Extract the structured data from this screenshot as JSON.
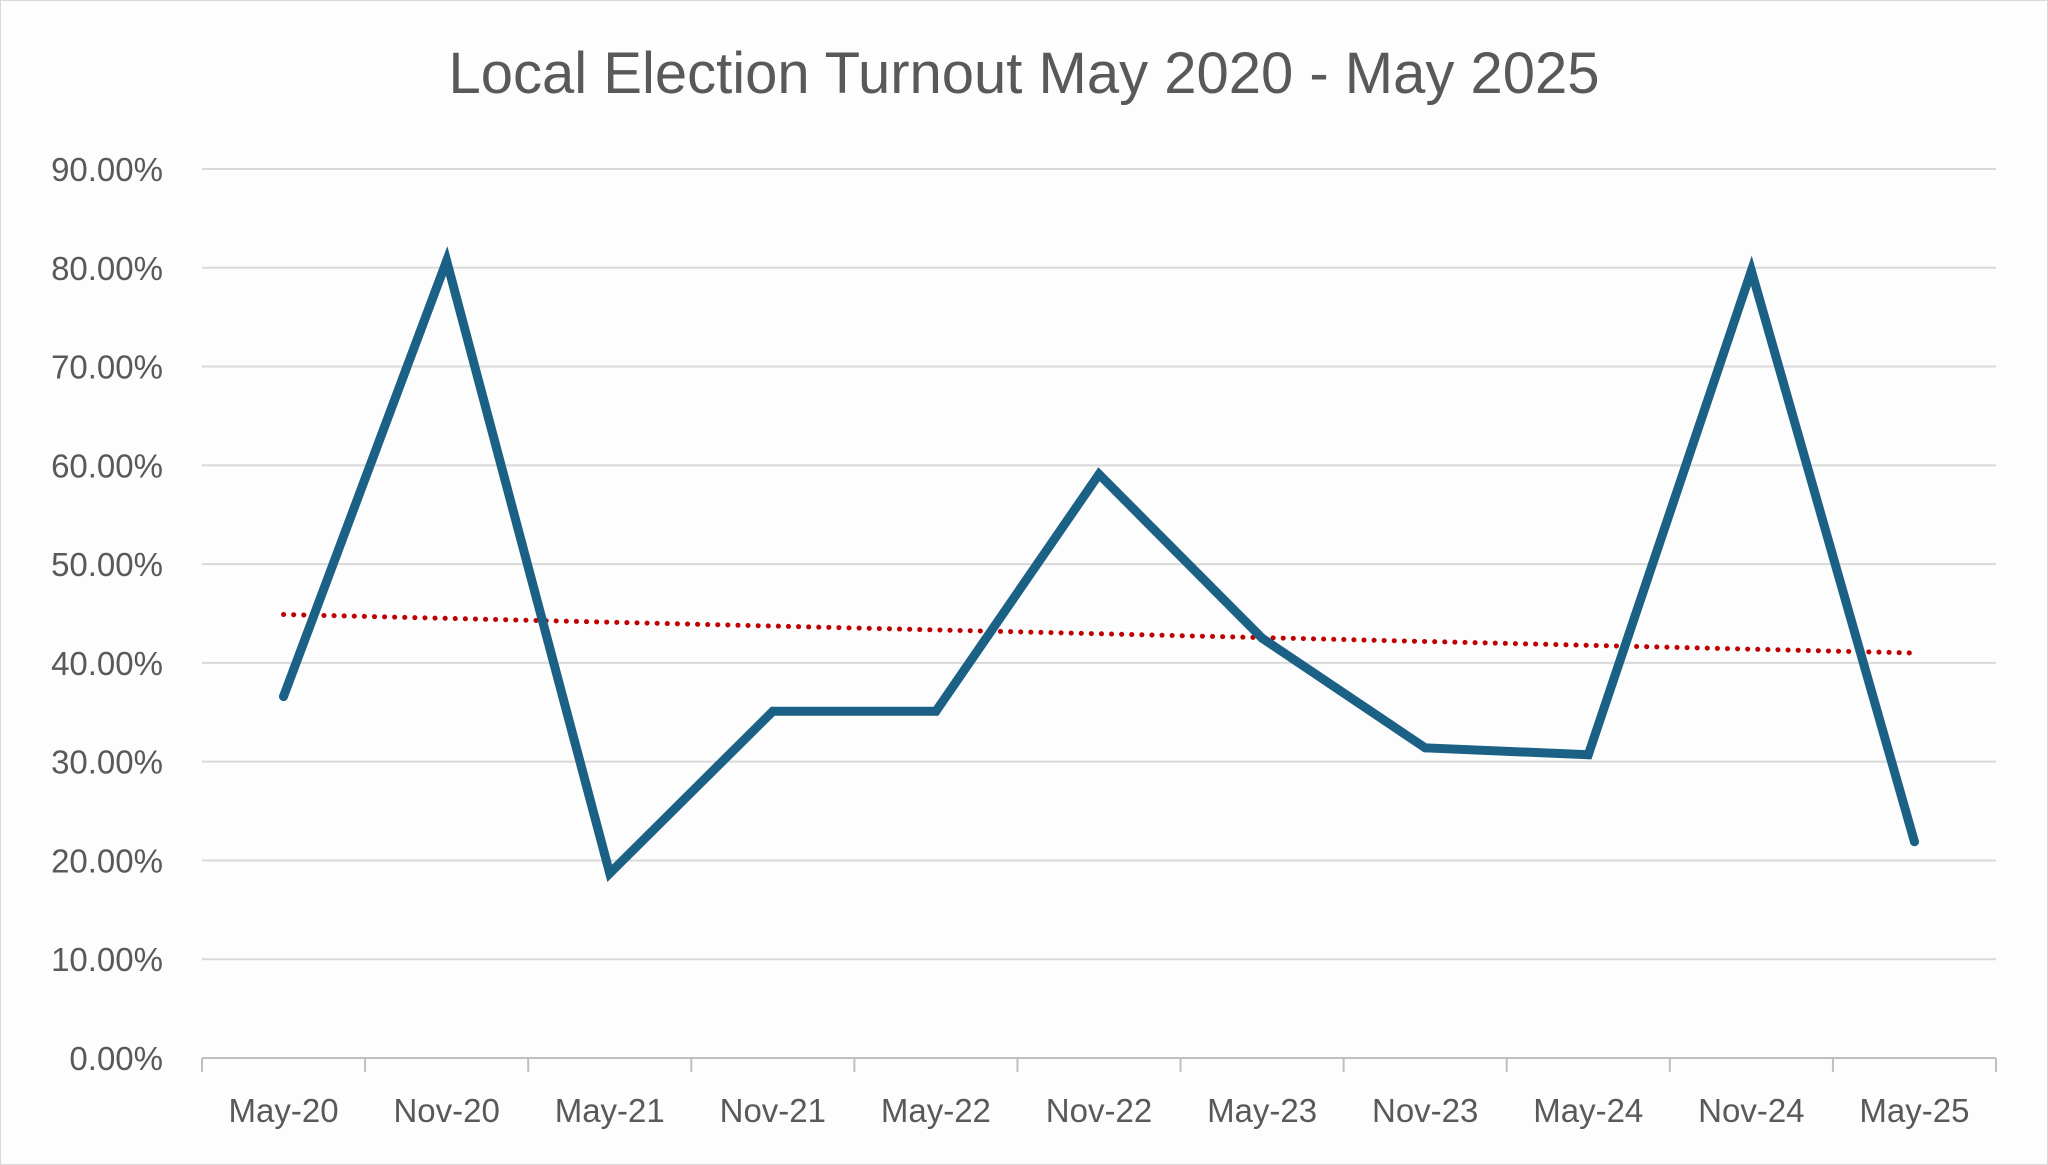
{
  "chart_data": {
    "type": "line",
    "title": "Local Election Turnout May 2020 - May 2025",
    "xlabel": "",
    "ylabel": "",
    "categories": [
      "May-20",
      "Nov-20",
      "May-21",
      "Nov-21",
      "May-22",
      "Nov-22",
      "May-23",
      "Nov-23",
      "May-24",
      "Nov-24",
      "May-25"
    ],
    "series": [
      {
        "values": [
          0.366,
          0.807,
          0.187,
          0.351,
          0.351,
          0.591,
          0.425,
          0.314,
          0.307,
          0.797,
          0.219
        ],
        "color": "#1b6185"
      }
    ],
    "trendline": {
      "type": "linear",
      "start": 0.449,
      "end": 0.41,
      "color": "#c00000",
      "style": "dotted"
    },
    "ylim": [
      0,
      0.9
    ],
    "yticks": [
      0,
      0.1,
      0.2,
      0.3,
      0.4,
      0.5,
      0.6,
      0.7,
      0.8,
      0.9
    ],
    "ytick_labels": [
      "0.00%",
      "10.00%",
      "20.00%",
      "30.00%",
      "40.00%",
      "50.00%",
      "60.00%",
      "70.00%",
      "80.00%",
      "90.00%"
    ],
    "grid": true,
    "legend": "none"
  }
}
